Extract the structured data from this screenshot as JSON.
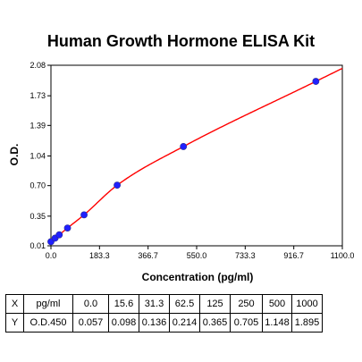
{
  "chart_data": {
    "type": "line",
    "title": "Human Growth Hormone ELISA Kit",
    "xlabel": "Concentration (pg/ml)",
    "ylabel": "O.D.",
    "xlim": [
      0.0,
      1100.0
    ],
    "ylim": [
      0.01,
      2.08
    ],
    "x_ticks": [
      "0.0",
      "183.3",
      "366.7",
      "550.0",
      "733.3",
      "916.7",
      "1100.0"
    ],
    "y_ticks": [
      "0.01",
      "0.35",
      "0.70",
      "1.04",
      "1.39",
      "1.73",
      "2.08"
    ],
    "grid": false,
    "series": [
      {
        "color": "#2020ff",
        "x": [
          0.0,
          15.6,
          31.3,
          62.5,
          125,
          250,
          500,
          1000
        ],
        "y": [
          0.057,
          0.098,
          0.136,
          0.214,
          0.365,
          0.705,
          1.148,
          1.895
        ]
      }
    ],
    "fit_line_color": "#ff0000"
  },
  "table": {
    "x_label": "X",
    "y_label": "Y",
    "x_unit": "pg/ml",
    "y_unit": "O.D.450",
    "x_values": [
      "0.0",
      "15.6",
      "31.3",
      "62.5",
      "125",
      "250",
      "500",
      "1000"
    ],
    "y_values": [
      "0.057",
      "0.098",
      "0.136",
      "0.214",
      "0.365",
      "0.705",
      "1.148",
      "1.895"
    ]
  }
}
